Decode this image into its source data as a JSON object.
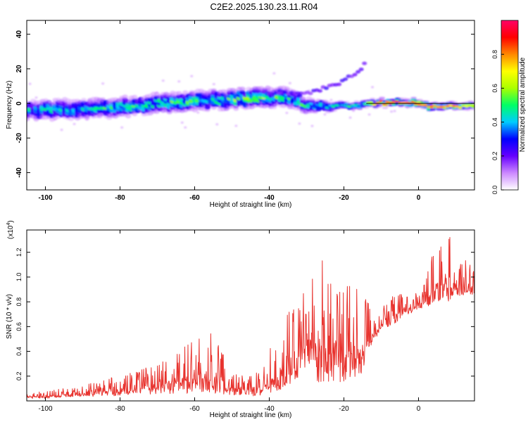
{
  "title": "C2E2.2025.130.23.11.R04",
  "colors": {
    "line": "#e8332e",
    "axis": "#000000"
  },
  "chart_data": [
    {
      "type": "heatmap",
      "xlabel": "Height of straight line (km)",
      "ylabel": "Frequency (Hz)",
      "xlim": [
        -105,
        15
      ],
      "ylim": [
        -50,
        48
      ],
      "x_ticks": [
        -100,
        -80,
        -60,
        -40,
        -20,
        0
      ],
      "y_ticks": [
        -40,
        -20,
        0,
        20,
        40
      ],
      "colorbar": {
        "label": "Normalized spectral amplitude",
        "range": [
          0,
          1
        ],
        "ticks": [
          0.0,
          0.2,
          0.4,
          0.6,
          0.8
        ],
        "tick_labels": [
          "0.0",
          "0.2",
          "0.4",
          "0.6",
          "0.8"
        ],
        "colormap": [
          "#ffffff",
          "#cc88ff",
          "#6600ff",
          "#0000ff",
          "#00ccff",
          "#00ff66",
          "#aaff00",
          "#ffff00",
          "#ff8800",
          "#ff0000",
          "#ff0066"
        ]
      },
      "trace": {
        "x": [
          -105,
          -95,
          -85,
          -75,
          -65,
          -55,
          -45,
          -35,
          -30,
          -25,
          -20,
          -15,
          -10,
          0,
          1,
          5,
          10,
          15
        ],
        "center_freq": [
          -4,
          -3.5,
          -3,
          -1,
          0.5,
          2,
          3,
          4,
          -1.5,
          -1.5,
          -1.5,
          -1,
          0.5,
          0.5,
          -1.5,
          -1.5,
          -1.5,
          -1.5
        ],
        "band_halfwidth": [
          5,
          5,
          5,
          5,
          5,
          5,
          5,
          5,
          4,
          3,
          2,
          2,
          2,
          2,
          2,
          2,
          2,
          2
        ],
        "peak_amplitude": [
          0.45,
          0.45,
          0.5,
          0.5,
          0.55,
          0.5,
          0.65,
          0.5,
          0.5,
          0.5,
          0.5,
          0.6,
          0.85,
          0.85,
          0.8,
          0.8,
          0.8,
          0.6
        ]
      },
      "harmonic_trace": {
        "x": [
          -40,
          -30,
          -25,
          -20,
          -15,
          -14
        ],
        "center_freq": [
          5,
          6,
          9,
          13,
          20,
          26
        ]
      }
    },
    {
      "type": "line",
      "xlabel": "Height of straight line (km)",
      "ylabel": "SNR (10 * v/v)",
      "y_scale_label": "(x10",
      "y_scale_exponent": "4",
      "y_scale_suffix": ")",
      "xlim": [
        -105,
        15
      ],
      "ylim": [
        0,
        1.38
      ],
      "x_ticks": [
        -100,
        -80,
        -60,
        -40,
        -20,
        0
      ],
      "y_ticks": [
        0.2,
        0.4,
        0.6,
        0.8,
        1.0,
        1.2
      ],
      "y_tick_labels": [
        "0.2",
        "0.4",
        "0.6",
        "0.8",
        "1.0",
        "1.2"
      ],
      "series": [
        {
          "x": [
            -105,
            -100,
            -95,
            -90,
            -85,
            -80,
            -75,
            -70,
            -65,
            -60,
            -55,
            -50,
            -45,
            -42,
            -40,
            -38,
            -35,
            -32,
            -30,
            -28,
            -26,
            -24,
            -22,
            -20,
            -18,
            -16,
            -14,
            -12,
            -10,
            -8,
            -6,
            -4,
            -2,
            0,
            2,
            4,
            6,
            8,
            10,
            12,
            15
          ],
          "envelope": [
            0.06,
            0.08,
            0.1,
            0.12,
            0.18,
            0.2,
            0.25,
            0.3,
            0.38,
            0.5,
            0.55,
            0.22,
            0.2,
            0.25,
            0.45,
            0.6,
            0.75,
            0.8,
            0.95,
            1.15,
            1.2,
            1.05,
            0.95,
            1.0,
            0.95,
            0.9,
            0.85,
            0.65,
            0.75,
            0.8,
            0.9,
            0.85,
            0.85,
            0.9,
            1.05,
            1.2,
            1.3,
            1.38,
            1.1,
            1.15,
            1.1
          ],
          "floor": [
            0.02,
            0.02,
            0.03,
            0.03,
            0.04,
            0.04,
            0.05,
            0.05,
            0.06,
            0.06,
            0.05,
            0.05,
            0.04,
            0.04,
            0.06,
            0.06,
            0.1,
            0.2,
            0.25,
            0.15,
            0.15,
            0.1,
            0.15,
            0.15,
            0.2,
            0.15,
            0.35,
            0.5,
            0.55,
            0.6,
            0.6,
            0.7,
            0.7,
            0.75,
            0.75,
            0.8,
            0.8,
            0.8,
            0.85,
            0.85,
            0.85
          ]
        }
      ]
    }
  ]
}
